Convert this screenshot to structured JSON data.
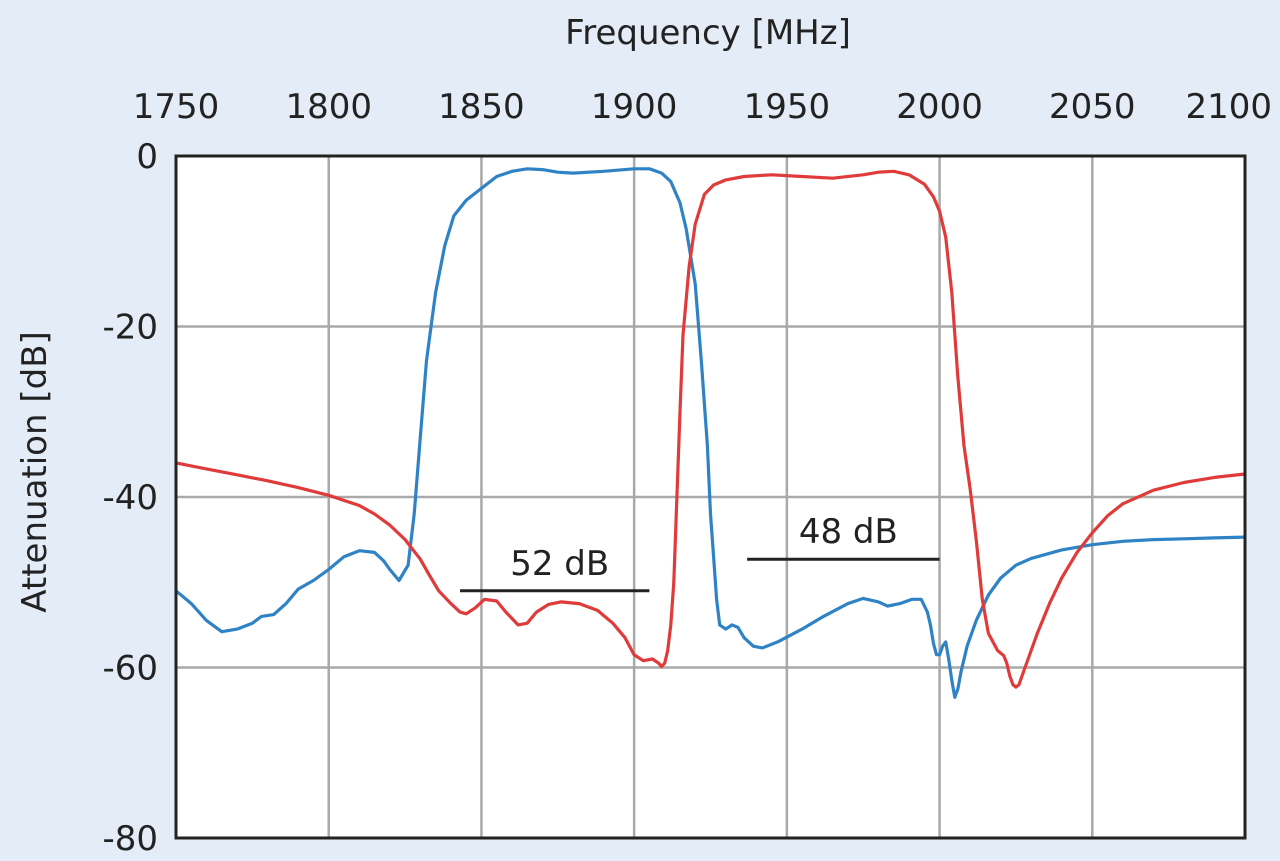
{
  "chart_data": {
    "type": "line",
    "xlabel": "Frequency [MHz]",
    "ylabel": "Attenuation [dB]",
    "xlim": [
      1750,
      2100
    ],
    "ylim": [
      -80,
      0
    ],
    "x_ticks": [
      "1750",
      "1800",
      "1850",
      "1900",
      "1950",
      "2000",
      "2050",
      "2100"
    ],
    "y_ticks": [
      "0",
      "-20",
      "-40",
      "-60",
      "-80"
    ],
    "x_axis_position": "top",
    "grid": true,
    "series": [
      {
        "color": "#2f83c5",
        "points": [
          [
            1750,
            -51.0
          ],
          [
            1755,
            -52.5
          ],
          [
            1760,
            -54.5
          ],
          [
            1765,
            -55.8
          ],
          [
            1770,
            -55.5
          ],
          [
            1775,
            -54.8
          ],
          [
            1778,
            -54.0
          ],
          [
            1782,
            -53.8
          ],
          [
            1786,
            -52.5
          ],
          [
            1790,
            -50.8
          ],
          [
            1795,
            -49.8
          ],
          [
            1800,
            -48.5
          ],
          [
            1805,
            -47.0
          ],
          [
            1810,
            -46.3
          ],
          [
            1815,
            -46.5
          ],
          [
            1818,
            -47.5
          ],
          [
            1820,
            -48.5
          ],
          [
            1823,
            -49.8
          ],
          [
            1826,
            -48.0
          ],
          [
            1828,
            -42.0
          ],
          [
            1830,
            -33.0
          ],
          [
            1832,
            -24.0
          ],
          [
            1835,
            -16.0
          ],
          [
            1838,
            -10.5
          ],
          [
            1841,
            -7.0
          ],
          [
            1845,
            -5.2
          ],
          [
            1850,
            -3.8
          ],
          [
            1855,
            -2.4
          ],
          [
            1860,
            -1.8
          ],
          [
            1865,
            -1.5
          ],
          [
            1870,
            -1.6
          ],
          [
            1875,
            -1.9
          ],
          [
            1880,
            -2.0
          ],
          [
            1890,
            -1.8
          ],
          [
            1900,
            -1.5
          ],
          [
            1905,
            -1.5
          ],
          [
            1909,
            -2.0
          ],
          [
            1912,
            -3.0
          ],
          [
            1915,
            -5.5
          ],
          [
            1917,
            -8.5
          ],
          [
            1920,
            -15.0
          ],
          [
            1922,
            -24.0
          ],
          [
            1924,
            -34.0
          ],
          [
            1925,
            -42.0
          ],
          [
            1926,
            -47.0
          ],
          [
            1927,
            -52.0
          ],
          [
            1928,
            -55.0
          ],
          [
            1930,
            -55.5
          ],
          [
            1932,
            -55.0
          ],
          [
            1934,
            -55.3
          ],
          [
            1936,
            -56.5
          ],
          [
            1939,
            -57.5
          ],
          [
            1942,
            -57.7
          ],
          [
            1947,
            -57.0
          ],
          [
            1955,
            -55.5
          ],
          [
            1962,
            -54.0
          ],
          [
            1970,
            -52.5
          ],
          [
            1975,
            -51.9
          ],
          [
            1980,
            -52.3
          ],
          [
            1983,
            -52.8
          ],
          [
            1987,
            -52.5
          ],
          [
            1991,
            -52.0
          ],
          [
            1994,
            -52.0
          ],
          [
            1996,
            -53.5
          ],
          [
            1997,
            -55.0
          ],
          [
            1998,
            -57.2
          ],
          [
            1999,
            -58.5
          ],
          [
            2000,
            -58.5
          ],
          [
            2001,
            -57.5
          ],
          [
            2002,
            -57.0
          ],
          [
            2003,
            -59.0
          ],
          [
            2004,
            -61.5
          ],
          [
            2005,
            -63.5
          ],
          [
            2006,
            -62.5
          ],
          [
            2007,
            -60.5
          ],
          [
            2009,
            -57.5
          ],
          [
            2012,
            -54.5
          ],
          [
            2016,
            -51.5
          ],
          [
            2020,
            -49.5
          ],
          [
            2025,
            -48.0
          ],
          [
            2030,
            -47.2
          ],
          [
            2040,
            -46.2
          ],
          [
            2050,
            -45.6
          ],
          [
            2060,
            -45.2
          ],
          [
            2070,
            -45.0
          ],
          [
            2080,
            -44.9
          ],
          [
            2090,
            -44.8
          ],
          [
            2100,
            -44.7
          ]
        ]
      },
      {
        "color": "#e03b3b",
        "points": [
          [
            1750,
            -36.0
          ],
          [
            1760,
            -36.7
          ],
          [
            1770,
            -37.4
          ],
          [
            1780,
            -38.1
          ],
          [
            1790,
            -38.9
          ],
          [
            1800,
            -39.8
          ],
          [
            1810,
            -41.0
          ],
          [
            1815,
            -42.0
          ],
          [
            1820,
            -43.3
          ],
          [
            1825,
            -45.0
          ],
          [
            1830,
            -47.3
          ],
          [
            1833,
            -49.2
          ],
          [
            1836,
            -51.0
          ],
          [
            1840,
            -52.5
          ],
          [
            1843,
            -53.5
          ],
          [
            1845,
            -53.7
          ],
          [
            1848,
            -53.0
          ],
          [
            1851,
            -52.0
          ],
          [
            1855,
            -52.2
          ],
          [
            1858,
            -53.5
          ],
          [
            1862,
            -55.0
          ],
          [
            1865,
            -54.8
          ],
          [
            1868,
            -53.5
          ],
          [
            1872,
            -52.6
          ],
          [
            1876,
            -52.3
          ],
          [
            1882,
            -52.5
          ],
          [
            1888,
            -53.3
          ],
          [
            1893,
            -54.8
          ],
          [
            1897,
            -56.5
          ],
          [
            1900,
            -58.5
          ],
          [
            1903,
            -59.2
          ],
          [
            1906,
            -59.0
          ],
          [
            1908,
            -59.5
          ],
          [
            1909,
            -59.9
          ],
          [
            1910,
            -59.5
          ],
          [
            1911,
            -58.0
          ],
          [
            1912,
            -55.0
          ],
          [
            1913,
            -50.0
          ],
          [
            1914,
            -40.0
          ],
          [
            1915,
            -30.0
          ],
          [
            1916,
            -21.0
          ],
          [
            1918,
            -13.0
          ],
          [
            1920,
            -8.0
          ],
          [
            1923,
            -4.5
          ],
          [
            1926,
            -3.4
          ],
          [
            1930,
            -2.8
          ],
          [
            1936,
            -2.4
          ],
          [
            1945,
            -2.2
          ],
          [
            1955,
            -2.4
          ],
          [
            1965,
            -2.6
          ],
          [
            1975,
            -2.2
          ],
          [
            1980,
            -1.9
          ],
          [
            1985,
            -1.8
          ],
          [
            1990,
            -2.2
          ],
          [
            1995,
            -3.3
          ],
          [
            1998,
            -4.8
          ],
          [
            2000,
            -6.5
          ],
          [
            2002,
            -9.5
          ],
          [
            2004,
            -16.0
          ],
          [
            2006,
            -26.0
          ],
          [
            2008,
            -34.0
          ],
          [
            2010,
            -39.0
          ],
          [
            2012,
            -45.0
          ],
          [
            2014,
            -52.0
          ],
          [
            2016,
            -56.0
          ],
          [
            2019,
            -58.0
          ],
          [
            2021,
            -58.6
          ],
          [
            2022,
            -59.5
          ],
          [
            2023,
            -61.0
          ],
          [
            2024,
            -62.0
          ],
          [
            2025,
            -62.3
          ],
          [
            2026,
            -62.0
          ],
          [
            2027,
            -61.0
          ],
          [
            2029,
            -59.0
          ],
          [
            2032,
            -56.0
          ],
          [
            2036,
            -52.5
          ],
          [
            2040,
            -49.5
          ],
          [
            2045,
            -46.5
          ],
          [
            2050,
            -44.2
          ],
          [
            2055,
            -42.2
          ],
          [
            2060,
            -40.8
          ],
          [
            2070,
            -39.2
          ],
          [
            2080,
            -38.3
          ],
          [
            2090,
            -37.7
          ],
          [
            2100,
            -37.3
          ]
        ]
      }
    ],
    "annotations": [
      {
        "text": "52 dB",
        "x1": 1843,
        "x2": 1905,
        "y": -51
      },
      {
        "text": "48 dB",
        "x1": 1937,
        "x2": 2000,
        "y": -47.3
      }
    ]
  }
}
